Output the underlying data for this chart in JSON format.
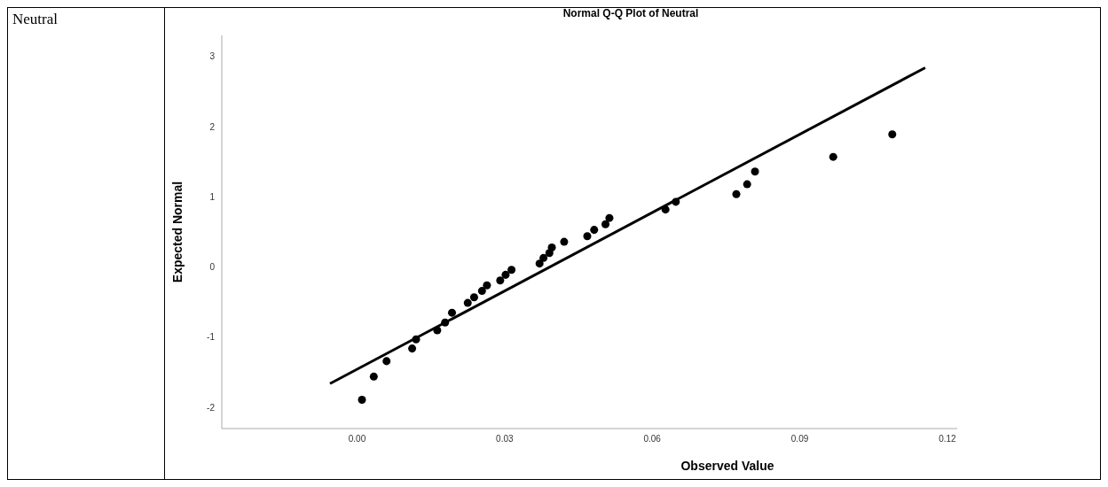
{
  "chart_data": {
    "type": "scatter",
    "title": "Normal Q-Q Plot of Neutral",
    "xlabel": "Observed Value",
    "ylabel": "Expected Normal",
    "annotations": [
      "Neutral"
    ],
    "xlim": [
      -0.0275,
      0.122
    ],
    "xticks": [
      {
        "value": 0,
        "label": "0.00"
      },
      {
        "value": 0.03,
        "label": "0.03"
      },
      {
        "value": 0.06,
        "label": "0.06"
      },
      {
        "value": 0.09,
        "label": "0.09"
      },
      {
        "value": 0.12,
        "label": "0.12"
      }
    ],
    "ylim": [
      -2.3,
      3.3
    ],
    "yticks": [
      -2,
      -1,
      0,
      1,
      2,
      3
    ],
    "series": [
      {
        "marker": "circle",
        "color": "#000000",
        "x": [
          0.001,
          0.0034,
          0.006,
          0.0112,
          0.012,
          0.0163,
          0.0179,
          0.0193,
          0.0225,
          0.0238,
          0.0254,
          0.0264,
          0.0291,
          0.0302,
          0.0314,
          0.0371,
          0.0379,
          0.0391,
          0.0396,
          0.0421,
          0.0468,
          0.0482,
          0.0505,
          0.0513,
          0.0627,
          0.0648,
          0.0771,
          0.0793,
          0.0809,
          0.0968,
          0.1088
        ],
        "values": [
          -1.89,
          -1.56,
          -1.34,
          -1.16,
          -1.03,
          -0.9,
          -0.79,
          -0.65,
          -0.51,
          -0.43,
          -0.34,
          -0.26,
          -0.19,
          -0.11,
          -0.04,
          0.05,
          0.13,
          0.2,
          0.28,
          0.36,
          0.44,
          0.53,
          0.61,
          0.7,
          0.82,
          0.93,
          1.04,
          1.18,
          1.36,
          1.57,
          1.89
        ]
      },
      {
        "type": "line",
        "marker": "none",
        "color": "#000000",
        "x": [
          -0.0055,
          0.1155
        ],
        "values": [
          -1.66,
          2.84
        ]
      }
    ]
  }
}
